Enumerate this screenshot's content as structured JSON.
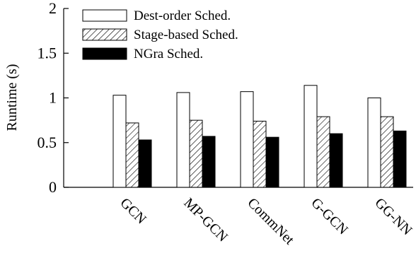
{
  "chart_data": {
    "type": "bar",
    "title": "",
    "xlabel": "",
    "ylabel": "Runtime (s)",
    "ylim": [
      0,
      2
    ],
    "yticks": [
      "0",
      "0.5",
      "1",
      "1.5",
      "2"
    ],
    "categories": [
      "GCN",
      "MP-GCN",
      "CommNet",
      "G-GCN",
      "GG-NN"
    ],
    "series": [
      {
        "name": "Dest-order Sched.",
        "values": [
          1.03,
          1.06,
          1.07,
          1.14,
          1.0
        ],
        "fill": "white"
      },
      {
        "name": "Stage-based Sched.",
        "values": [
          0.72,
          0.75,
          0.74,
          0.79,
          0.79
        ],
        "fill": "hatch"
      },
      {
        "name": "NGra Sched.",
        "values": [
          0.53,
          0.57,
          0.56,
          0.6,
          0.63
        ],
        "fill": "black"
      }
    ],
    "legend_position": "top-left",
    "grid": false,
    "colors": {
      "axis": "#000000",
      "bar_outline": "#000000",
      "solid_fill": "#000000",
      "empty_fill": "#ffffff"
    }
  }
}
